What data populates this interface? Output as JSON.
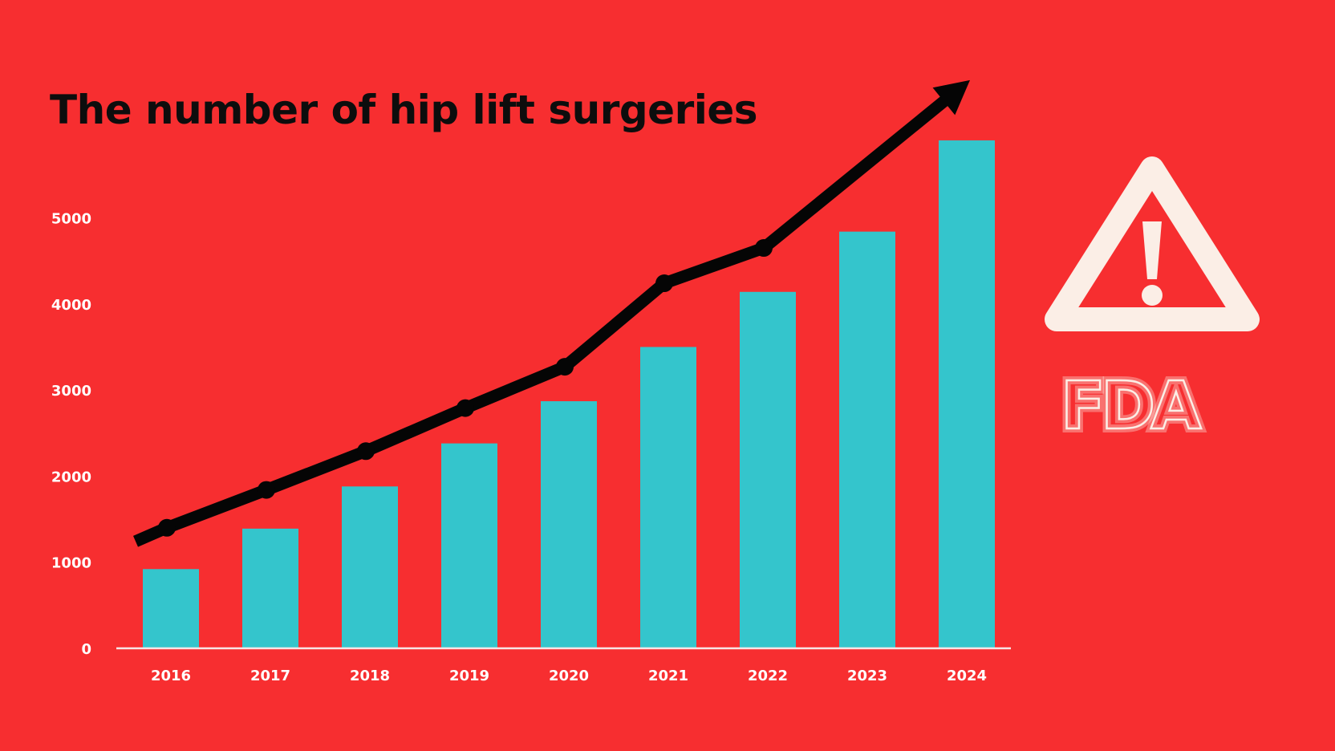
{
  "chart_data": {
    "type": "bar",
    "title": "The number of hip lift surgeries",
    "categories": [
      "2016",
      "2017",
      "2018",
      "2019",
      "2020",
      "2021",
      "2022",
      "2023",
      "2024"
    ],
    "values": [
      920,
      1390,
      1880,
      2380,
      2870,
      3500,
      4140,
      4840,
      5900
    ],
    "trend_line": {
      "values": [
        1400,
        1840,
        2290,
        2790,
        3270,
        4240,
        4650
      ],
      "arrow_end": {
        "x": "2024",
        "y": 6600
      }
    },
    "ylim": [
      0,
      6000
    ],
    "yticks": [
      0,
      1000,
      2000,
      3000,
      4000,
      5000
    ],
    "xlabel": "",
    "ylabel": "",
    "grid": false,
    "legend": "none"
  },
  "icons": {
    "warning": "warning-triangle-icon",
    "logo": "fda-logo"
  },
  "logo_text": "FDA",
  "colors": {
    "background": "#f72e30",
    "bar": "#34c5cc",
    "trend": "#050505",
    "icon": "#fbeee6"
  }
}
